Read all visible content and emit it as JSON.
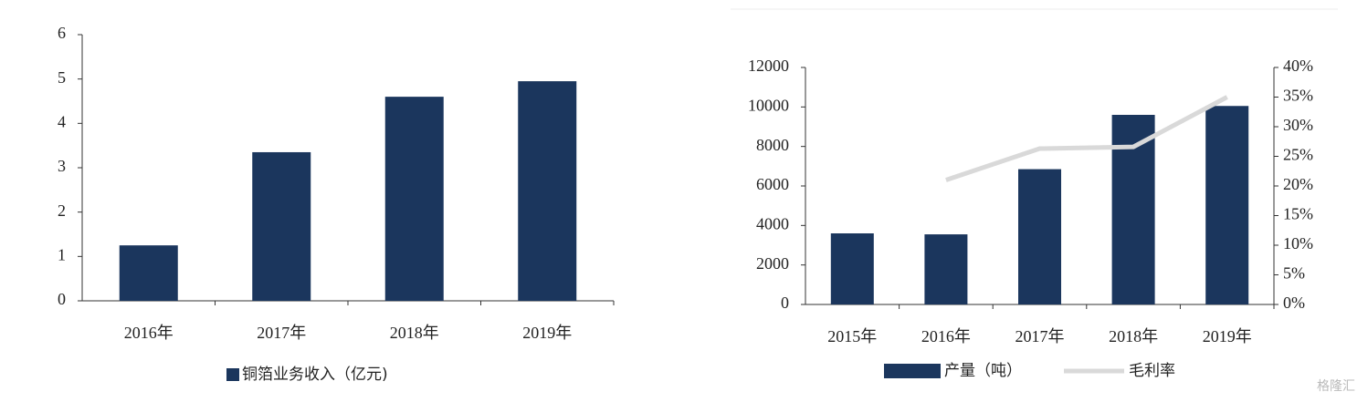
{
  "chart_data": [
    {
      "type": "bar",
      "categories": [
        "2016年",
        "2017年",
        "2018年",
        "2019年"
      ],
      "series": [
        {
          "name": "铜箔业务收入（亿元)",
          "color": "#1b365d",
          "values": [
            1.25,
            3.35,
            4.6,
            4.95
          ]
        }
      ],
      "ylim": [
        0,
        6
      ],
      "yticks": [
        0,
        1,
        2,
        3,
        4,
        5,
        6
      ],
      "grid": false
    },
    {
      "type": "bar",
      "categories": [
        "2015年",
        "2016年",
        "2017年",
        "2018年",
        "2019年"
      ],
      "series": [
        {
          "name": "产量（吨）",
          "color": "#1b365d",
          "values": [
            3600,
            3550,
            6850,
            9600,
            10050
          ]
        },
        {
          "name": "毛利率",
          "type": "line",
          "axis": "y2",
          "color": "#d9d9d9",
          "values": [
            null,
            21,
            26.3,
            26.6,
            35
          ]
        }
      ],
      "ylim": [
        0,
        12000
      ],
      "yticks": [
        0,
        2000,
        4000,
        6000,
        8000,
        10000,
        12000
      ],
      "y2lim": [
        0,
        40
      ],
      "y2ticks": [
        {
          "value": 0,
          "label": "0%"
        },
        {
          "value": 5,
          "label": "5%"
        },
        {
          "value": 10,
          "label": "10%"
        },
        {
          "value": 15,
          "label": "15%"
        },
        {
          "value": 20,
          "label": "20%"
        },
        {
          "value": 25,
          "label": "25%"
        },
        {
          "value": 30,
          "label": "30%"
        },
        {
          "value": 35,
          "label": "35%"
        },
        {
          "value": 40,
          "label": "40%"
        }
      ],
      "grid": false
    }
  ],
  "watermark": "格隆汇"
}
